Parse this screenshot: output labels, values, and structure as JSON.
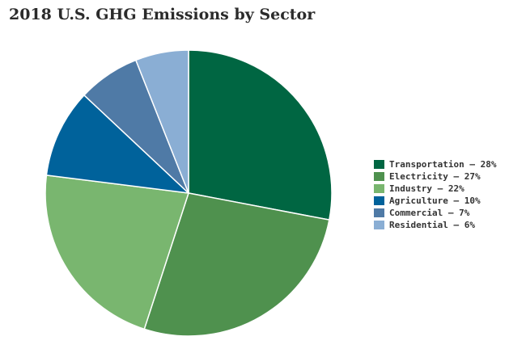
{
  "chart_data": {
    "type": "pie",
    "title": "2018 U.S. GHG Emissions by Sector",
    "slices": [
      {
        "label": "Transportation",
        "value": 28,
        "color": "#006642",
        "legend": "Transportation – 28%"
      },
      {
        "label": "Electricity",
        "value": 27,
        "color": "#4f914e",
        "legend": "Electricity – 27%"
      },
      {
        "label": "Industry",
        "value": 22,
        "color": "#79b66f",
        "legend": "Industry – 22%"
      },
      {
        "label": "Agriculture",
        "value": 10,
        "color": "#00629b",
        "legend": "Agriculture – 10%"
      },
      {
        "label": "Commercial",
        "value": 7,
        "color": "#4f7aa6",
        "legend": "Commercial – 7%"
      },
      {
        "label": "Residential",
        "value": 6,
        "color": "#8aaed4",
        "legend": "Residential – 6%"
      }
    ],
    "start_angle": "12 o'clock",
    "direction": "clockwise",
    "legend_position": "right"
  }
}
